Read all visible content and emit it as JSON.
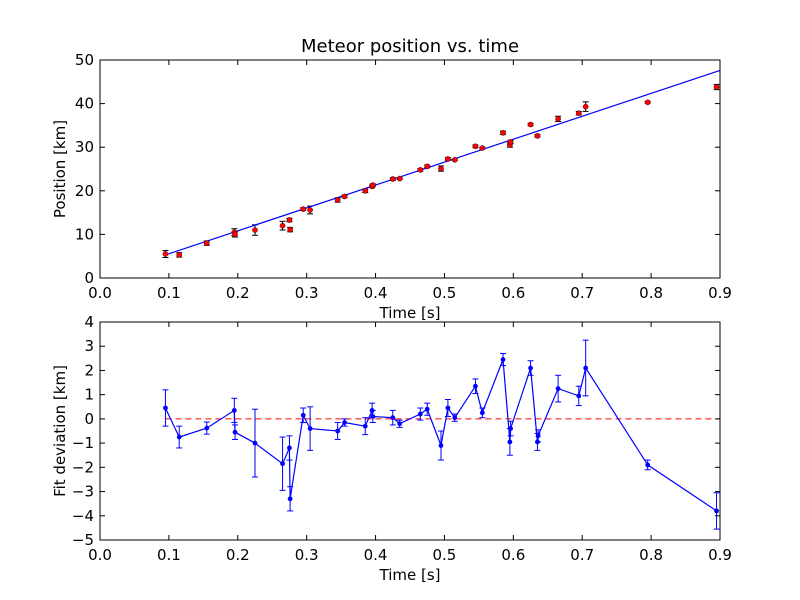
{
  "chart_data": [
    {
      "type": "scatter",
      "title": "Meteor position vs. time",
      "xlabel": "Time [s]",
      "ylabel": "Position [km]",
      "xlim": [
        0.0,
        0.9
      ],
      "ylim": [
        0,
        50
      ],
      "xticks": [
        "0.0",
        "0.1",
        "0.2",
        "0.3",
        "0.4",
        "0.5",
        "0.6",
        "0.7",
        "0.8",
        "0.9"
      ],
      "yticks": [
        "0",
        "10",
        "20",
        "30",
        "40",
        "50"
      ],
      "grid": false,
      "colors": {
        "points": "#ff0000",
        "fit": "#0000ff"
      },
      "points": [
        {
          "x": 0.095,
          "y": 5.5,
          "err": 0.8
        },
        {
          "x": 0.115,
          "y": 5.3,
          "err": 0.5
        },
        {
          "x": 0.155,
          "y": 8.0,
          "err": 0.5
        },
        {
          "x": 0.195,
          "y": 10.5,
          "err": 0.8
        },
        {
          "x": 0.196,
          "y": 10.0,
          "err": 0.6
        },
        {
          "x": 0.225,
          "y": 11.0,
          "err": 1.2
        },
        {
          "x": 0.265,
          "y": 12.0,
          "err": 1.0
        },
        {
          "x": 0.275,
          "y": 13.3,
          "err": 0.4
        },
        {
          "x": 0.276,
          "y": 11.1,
          "err": 0.5
        },
        {
          "x": 0.295,
          "y": 15.8,
          "err": 0.3
        },
        {
          "x": 0.305,
          "y": 15.6,
          "err": 0.9
        },
        {
          "x": 0.345,
          "y": 17.9,
          "err": 0.5
        },
        {
          "x": 0.355,
          "y": 18.7,
          "err": 0.3
        },
        {
          "x": 0.385,
          "y": 20.0,
          "err": 0.4
        },
        {
          "x": 0.395,
          "y": 21.0,
          "err": 0.3
        },
        {
          "x": 0.396,
          "y": 21.3,
          "err": 0.3
        },
        {
          "x": 0.425,
          "y": 22.7,
          "err": 0.3
        },
        {
          "x": 0.435,
          "y": 22.8,
          "err": 0.2
        },
        {
          "x": 0.465,
          "y": 24.8,
          "err": 0.3
        },
        {
          "x": 0.475,
          "y": 25.6,
          "err": 0.3
        },
        {
          "x": 0.495,
          "y": 25.1,
          "err": 0.6
        },
        {
          "x": 0.505,
          "y": 27.3,
          "err": 0.3
        },
        {
          "x": 0.515,
          "y": 27.1,
          "err": 0.2
        },
        {
          "x": 0.545,
          "y": 30.2,
          "err": 0.3
        },
        {
          "x": 0.555,
          "y": 29.8,
          "err": 0.2
        },
        {
          "x": 0.585,
          "y": 33.3,
          "err": 0.4
        },
        {
          "x": 0.595,
          "y": 30.5,
          "err": 0.5
        },
        {
          "x": 0.596,
          "y": 31.2,
          "err": 0.4
        },
        {
          "x": 0.625,
          "y": 35.2,
          "err": 0.3
        },
        {
          "x": 0.635,
          "y": 32.6,
          "err": 0.3
        },
        {
          "x": 0.665,
          "y": 36.5,
          "err": 0.6
        },
        {
          "x": 0.695,
          "y": 37.8,
          "err": 0.4
        },
        {
          "x": 0.705,
          "y": 39.3,
          "err": 1.1
        },
        {
          "x": 0.795,
          "y": 40.3,
          "err": 0.2
        },
        {
          "x": 0.895,
          "y": 43.8,
          "err": 0.6
        }
      ],
      "fit_line": [
        {
          "x": 0.095,
          "y": 5.3
        },
        {
          "x": 0.9,
          "y": 47.6
        }
      ]
    },
    {
      "type": "line",
      "xlabel": "Time [s]",
      "ylabel": "Fit deviation [km]",
      "xlim": [
        0.0,
        0.9
      ],
      "ylim": [
        -5,
        4
      ],
      "xticks": [
        "0.0",
        "0.1",
        "0.2",
        "0.3",
        "0.4",
        "0.5",
        "0.6",
        "0.7",
        "0.8",
        "0.9"
      ],
      "yticks": [
        "−5",
        "−4",
        "−3",
        "−2",
        "−1",
        "0",
        "1",
        "2",
        "3",
        "4"
      ],
      "grid": false,
      "colors": {
        "series": "#0000ff",
        "zero_line": "#ff0000"
      },
      "zero_line": 0,
      "points": [
        {
          "x": 0.095,
          "y": 0.45,
          "err": 0.75
        },
        {
          "x": 0.115,
          "y": -0.75,
          "err": 0.45
        },
        {
          "x": 0.155,
          "y": -0.38,
          "err": 0.25
        },
        {
          "x": 0.195,
          "y": 0.35,
          "err": 0.5
        },
        {
          "x": 0.196,
          "y": -0.55,
          "err": 0.3
        },
        {
          "x": 0.225,
          "y": -1.0,
          "err": 1.4
        },
        {
          "x": 0.265,
          "y": -1.85,
          "err": 1.1
        },
        {
          "x": 0.275,
          "y": -1.2,
          "err": 0.5
        },
        {
          "x": 0.276,
          "y": -3.3,
          "err": 0.5
        },
        {
          "x": 0.295,
          "y": 0.15,
          "err": 0.3
        },
        {
          "x": 0.305,
          "y": -0.4,
          "err": 0.9
        },
        {
          "x": 0.345,
          "y": -0.5,
          "err": 0.35
        },
        {
          "x": 0.355,
          "y": -0.15,
          "err": 0.15
        },
        {
          "x": 0.385,
          "y": -0.3,
          "err": 0.35
        },
        {
          "x": 0.395,
          "y": 0.35,
          "err": 0.3
        },
        {
          "x": 0.396,
          "y": 0.1,
          "err": 0.25
        },
        {
          "x": 0.425,
          "y": 0.05,
          "err": 0.3
        },
        {
          "x": 0.435,
          "y": -0.2,
          "err": 0.15
        },
        {
          "x": 0.465,
          "y": 0.2,
          "err": 0.25
        },
        {
          "x": 0.475,
          "y": 0.4,
          "err": 0.25
        },
        {
          "x": 0.495,
          "y": -1.1,
          "err": 0.6
        },
        {
          "x": 0.505,
          "y": 0.45,
          "err": 0.35
        },
        {
          "x": 0.515,
          "y": 0.05,
          "err": 0.15
        },
        {
          "x": 0.545,
          "y": 1.35,
          "err": 0.3
        },
        {
          "x": 0.555,
          "y": 0.25,
          "err": 0.2
        },
        {
          "x": 0.585,
          "y": 2.45,
          "err": 0.25
        },
        {
          "x": 0.595,
          "y": -0.95,
          "err": 0.55
        },
        {
          "x": 0.596,
          "y": -0.4,
          "err": 0.3
        },
        {
          "x": 0.625,
          "y": 2.1,
          "err": 0.3
        },
        {
          "x": 0.635,
          "y": -0.95,
          "err": 0.35
        },
        {
          "x": 0.636,
          "y": -0.7,
          "err": 0.25
        },
        {
          "x": 0.665,
          "y": 1.25,
          "err": 0.55
        },
        {
          "x": 0.695,
          "y": 0.95,
          "err": 0.4
        },
        {
          "x": 0.705,
          "y": 2.1,
          "err": 1.15
        },
        {
          "x": 0.795,
          "y": -1.9,
          "err": 0.2
        },
        {
          "x": 0.895,
          "y": -3.8,
          "err": 0.75
        }
      ]
    }
  ]
}
